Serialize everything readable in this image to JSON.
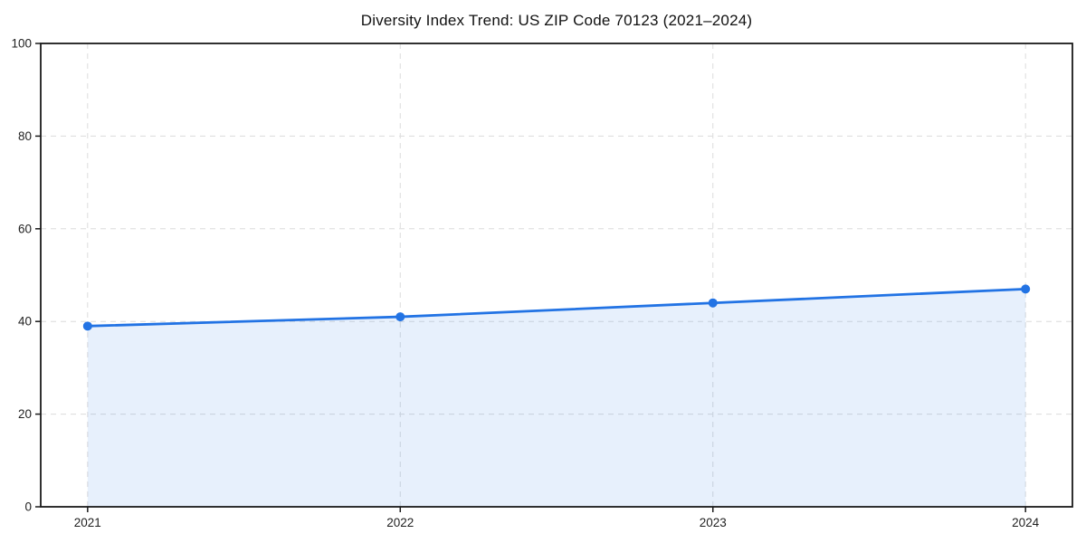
{
  "chart_data": {
    "type": "area",
    "title": "Diversity Index Trend: US ZIP Code 70123 (2021–2024)",
    "categories": [
      "2021",
      "2022",
      "2023",
      "2024"
    ],
    "series": [
      {
        "name": "Diversity Index",
        "values": [
          39,
          41,
          44,
          47
        ]
      }
    ],
    "xlabel": "",
    "ylabel": "",
    "ylim": [
      0,
      100
    ],
    "yticks": [
      0,
      20,
      40,
      60,
      80,
      100
    ],
    "grid": "dashed-both-axes",
    "legend": "none",
    "style": {
      "line_color": "#2273e4",
      "marker_color": "#2273e4",
      "fill_color": "rgba(34, 115, 228, 0.11)",
      "grid_color": "#dcdcdc",
      "spine_color": "#1a1a1a",
      "tick_label_color": "#1f1f1f",
      "title_color": "#111111",
      "background": "#ffffff"
    }
  }
}
